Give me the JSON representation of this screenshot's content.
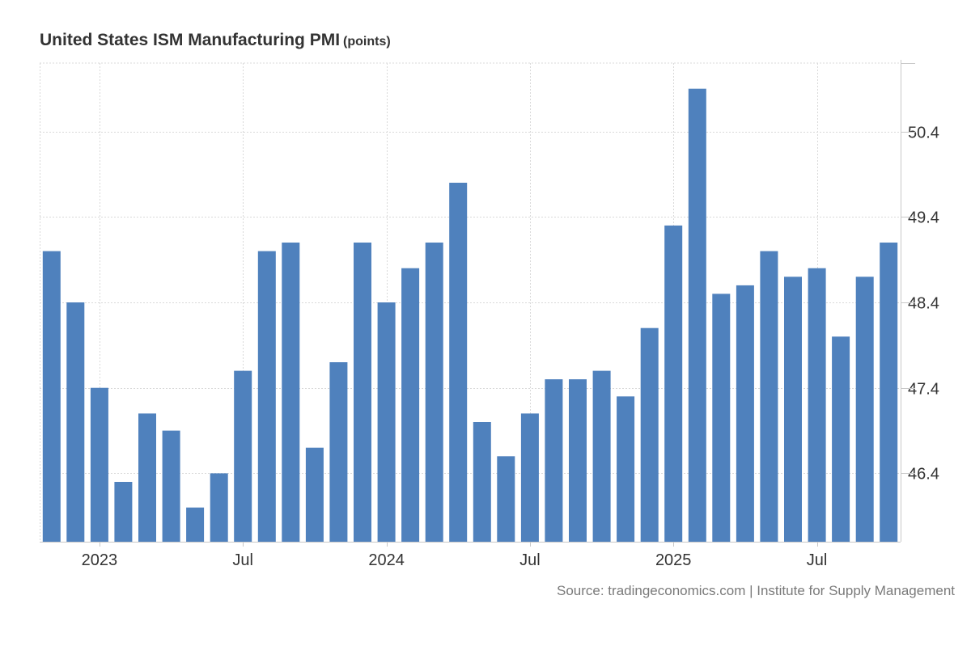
{
  "header": {
    "title": "United States ISM Manufacturing PMI",
    "unit": "(points)"
  },
  "footer": {
    "source": "Source: tradingeconomics.com | Institute for Supply Management"
  },
  "colors": {
    "bar": "#4f81bd",
    "grid": "#d9d9d9",
    "axis": "#c8c8c8",
    "text": "#333333"
  },
  "chart_data": {
    "type": "bar",
    "title": "United States ISM Manufacturing PMI (points)",
    "xlabel": "",
    "ylabel": "",
    "ylim": [
      45.6,
      51.2
    ],
    "yticks": [
      46.4,
      47.4,
      48.4,
      49.4,
      50.4
    ],
    "ytick_labels": [
      "46.4",
      "47.4",
      "48.4",
      "49.4",
      "50.4"
    ],
    "grid": true,
    "legend": "none",
    "categories": [
      "Nov 2022",
      "Dec 2022",
      "Jan 2023",
      "Feb 2023",
      "Mar 2023",
      "Apr 2023",
      "May 2023",
      "Jun 2023",
      "Jul 2023",
      "Aug 2023",
      "Sep 2023",
      "Oct 2023",
      "Nov 2023",
      "Dec 2023",
      "Jan 2024",
      "Feb 2024",
      "Mar 2024",
      "Apr 2024",
      "May 2024",
      "Jun 2024",
      "Jul 2024",
      "Aug 2024",
      "Sep 2024",
      "Oct 2024",
      "Nov 2024",
      "Dec 2024",
      "Jan 2025",
      "Feb 2025",
      "Mar 2025",
      "Apr 2025",
      "May 2025",
      "Jun 2025",
      "Jul 2025",
      "Aug 2025",
      "Sep 2025",
      "Oct 2025"
    ],
    "values": [
      49.0,
      48.4,
      47.4,
      46.3,
      47.1,
      46.9,
      46.0,
      46.4,
      47.6,
      49.0,
      49.1,
      46.7,
      47.7,
      49.1,
      48.4,
      48.8,
      49.1,
      49.8,
      47.0,
      46.6,
      47.1,
      47.5,
      47.5,
      47.6,
      47.3,
      48.1,
      49.3,
      50.9,
      48.5,
      48.6,
      49.0,
      48.7,
      48.8,
      48.0,
      48.7,
      49.1
    ],
    "x_tick_labels": [
      {
        "index": 2,
        "label": "2023"
      },
      {
        "index": 8,
        "label": "Jul"
      },
      {
        "index": 14,
        "label": "2024"
      },
      {
        "index": 20,
        "label": "Jul"
      },
      {
        "index": 26,
        "label": "2025"
      },
      {
        "index": 32,
        "label": "Jul"
      }
    ],
    "source": "Source: tradingeconomics.com | Institute for Supply Management"
  }
}
